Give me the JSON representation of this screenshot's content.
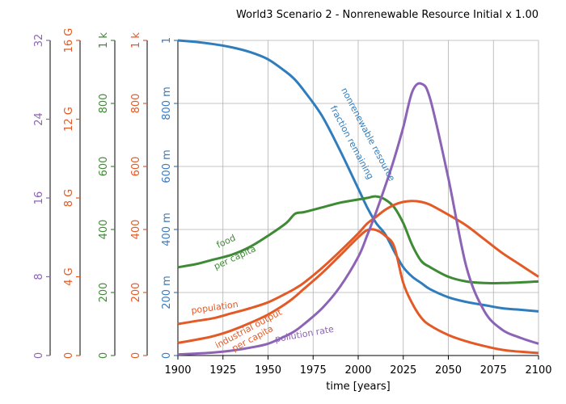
{
  "chart_data": {
    "type": "line",
    "title": "World3 Scenario 2 - Nonrenewable Resource Initial x 1.00",
    "xlabel": "time [years]",
    "xlim": [
      1900,
      2100
    ],
    "x_ticks": [
      "1900",
      "1925",
      "1950",
      "1975",
      "2000",
      "2025",
      "2050",
      "2075",
      "2100"
    ],
    "grid": true,
    "legend": "none",
    "x": [
      1900,
      1910,
      1920,
      1930,
      1940,
      1950,
      1960,
      1965,
      1970,
      1980,
      1990,
      2000,
      2005,
      2010,
      2015,
      2020,
      2025,
      2030,
      2035,
      2040,
      2050,
      2060,
      2070,
      2080,
      2090,
      2100
    ],
    "axes": [
      {
        "id": "pollution",
        "color": "#8c63b5",
        "range": [
          0,
          32
        ],
        "ticks": [
          "0",
          "8",
          "16",
          "24",
          "32"
        ]
      },
      {
        "id": "population",
        "color": "#e35a26",
        "range": [
          0,
          16000000000
        ],
        "ticks": [
          "0",
          "4 G",
          "8 G",
          "12 G",
          "16 G"
        ]
      },
      {
        "id": "food",
        "color": "#3f8a35",
        "range": [
          0,
          1000
        ],
        "ticks": [
          "0",
          "200",
          "400",
          "600",
          "800",
          "1 k"
        ]
      },
      {
        "id": "industrial",
        "color": "#e35a26",
        "range": [
          0,
          1000
        ],
        "ticks": [
          "0",
          "200",
          "400",
          "600",
          "800",
          "1 k"
        ]
      },
      {
        "id": "resource",
        "color": "#3b7bbf",
        "range": [
          0,
          1
        ],
        "ticks": [
          "0",
          "200 m",
          "400 m",
          "600 m",
          "800 m",
          "1"
        ]
      }
    ],
    "series": [
      {
        "id": "resource",
        "axis": "resource",
        "color": "#2f7dbd",
        "annotation": [
          "nonrenewable resource",
          "fraction remaining"
        ],
        "values": [
          1.0,
          0.995,
          0.988,
          0.978,
          0.963,
          0.94,
          0.9,
          0.875,
          0.84,
          0.76,
          0.65,
          0.53,
          0.47,
          0.42,
          0.385,
          0.33,
          0.28,
          0.25,
          0.23,
          0.21,
          0.185,
          0.17,
          0.16,
          0.15,
          0.145,
          0.14
        ]
      },
      {
        "id": "food",
        "axis": "food",
        "color": "#3f8a35",
        "annotation": [
          "food",
          "per capita"
        ],
        "values": [
          280,
          290,
          305,
          320,
          345,
          380,
          420,
          450,
          455,
          470,
          485,
          495,
          500,
          505,
          495,
          470,
          420,
          350,
          300,
          280,
          250,
          235,
          230,
          230,
          232,
          235
        ]
      },
      {
        "id": "population",
        "axis": "population",
        "color": "#e35a26",
        "annotation": [
          "population"
        ],
        "values": [
          1600000000,
          1750000000,
          1900000000,
          2150000000,
          2400000000,
          2700000000,
          3150000000,
          3400000000,
          3700000000,
          4450000000,
          5300000000,
          6200000000,
          6700000000,
          7050000000,
          7400000000,
          7650000000,
          7800000000,
          7850000000,
          7800000000,
          7650000000,
          7150000000,
          6600000000,
          5900000000,
          5200000000,
          4600000000,
          4000000000
        ]
      },
      {
        "id": "industrial",
        "axis": "industrial",
        "color": "#e35a26",
        "annotation": [
          "industrial output",
          "per capita"
        ],
        "values": [
          40,
          50,
          62,
          80,
          103,
          130,
          165,
          187,
          212,
          262,
          318,
          375,
          398,
          398,
          380,
          345,
          230,
          165,
          120,
          95,
          65,
          45,
          30,
          18,
          12,
          8
        ]
      },
      {
        "id": "pollution",
        "axis": "pollution",
        "color": "#8c63b5",
        "annotation": [
          "pollution rate"
        ],
        "values": [
          0.1,
          0.2,
          0.3,
          0.5,
          0.8,
          1.2,
          2.0,
          2.5,
          3.2,
          4.8,
          7.0,
          10.0,
          12.2,
          14.6,
          17.2,
          20.0,
          23.2,
          26.8,
          27.6,
          26.0,
          18.0,
          9.0,
          4.5,
          2.6,
          1.8,
          1.2
        ]
      }
    ]
  }
}
